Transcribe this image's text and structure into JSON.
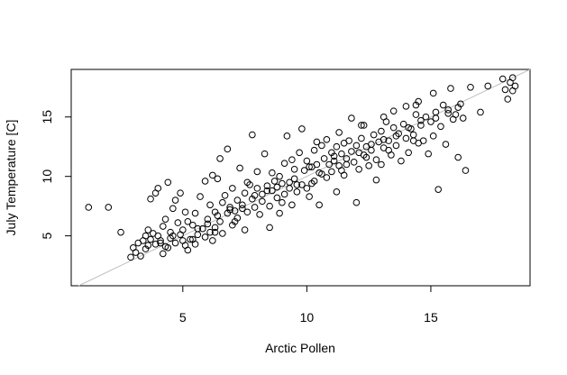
{
  "chart_data": {
    "type": "scatter",
    "title": "",
    "xlabel": "Arctic Pollen",
    "ylabel": "July Temperature [C]",
    "xlim": [
      0.5,
      19.0
    ],
    "ylim": [
      0.8,
      19.0
    ],
    "x_ticks": [
      5,
      10,
      15
    ],
    "y_ticks": [
      5,
      10,
      15
    ],
    "x_tick_labels": [
      "5",
      "10",
      "15"
    ],
    "y_tick_labels": [
      "5",
      "10",
      "15"
    ],
    "grid": false,
    "legend": "none",
    "reference_line": {
      "slope": 1,
      "intercept": 0,
      "color": "#c0c0c0"
    },
    "marker": "open-circle",
    "marker_color": "#000000",
    "series": [
      {
        "points": [
          [
            1.2,
            7.4
          ],
          [
            2.0,
            7.4
          ],
          [
            2.5,
            5.3
          ],
          [
            2.9,
            3.2
          ],
          [
            3.0,
            4.0
          ],
          [
            3.1,
            3.6
          ],
          [
            3.2,
            4.4
          ],
          [
            3.3,
            3.3
          ],
          [
            3.4,
            4.6
          ],
          [
            3.5,
            5.0
          ],
          [
            3.5,
            3.9
          ],
          [
            3.6,
            5.5
          ],
          [
            3.7,
            4.7
          ],
          [
            3.7,
            8.1
          ],
          [
            3.8,
            5.2
          ],
          [
            3.9,
            4.3
          ],
          [
            3.9,
            8.6
          ],
          [
            4.0,
            9.0
          ],
          [
            4.0,
            5.0
          ],
          [
            4.1,
            4.6
          ],
          [
            4.2,
            3.5
          ],
          [
            4.2,
            5.8
          ],
          [
            4.3,
            4.1
          ],
          [
            4.3,
            6.4
          ],
          [
            4.4,
            9.5
          ],
          [
            4.5,
            4.8
          ],
          [
            4.5,
            5.3
          ],
          [
            4.6,
            7.3
          ],
          [
            4.7,
            4.4
          ],
          [
            4.7,
            8.0
          ],
          [
            4.8,
            6.1
          ],
          [
            4.9,
            5.1
          ],
          [
            4.9,
            8.6
          ],
          [
            5.0,
            4.6
          ],
          [
            5.0,
            5.5
          ],
          [
            5.1,
            7.0
          ],
          [
            5.2,
            3.8
          ],
          [
            5.2,
            6.2
          ],
          [
            5.3,
            4.7
          ],
          [
            5.4,
            5.9
          ],
          [
            5.5,
            4.3
          ],
          [
            5.5,
            6.9
          ],
          [
            5.6,
            5.1
          ],
          [
            5.7,
            8.3
          ],
          [
            5.8,
            5.6
          ],
          [
            5.9,
            4.9
          ],
          [
            5.9,
            9.6
          ],
          [
            6.0,
            6.4
          ],
          [
            6.1,
            7.6
          ],
          [
            6.1,
            5.3
          ],
          [
            6.2,
            4.6
          ],
          [
            6.2,
            10.1
          ],
          [
            6.3,
            7.0
          ],
          [
            6.3,
            5.7
          ],
          [
            6.4,
            9.8
          ],
          [
            6.5,
            6.2
          ],
          [
            6.5,
            11.5
          ],
          [
            6.6,
            7.8
          ],
          [
            6.6,
            5.2
          ],
          [
            6.7,
            8.4
          ],
          [
            6.8,
            6.9
          ],
          [
            6.8,
            12.3
          ],
          [
            6.9,
            7.4
          ],
          [
            7.0,
            5.9
          ],
          [
            7.0,
            9.0
          ],
          [
            7.1,
            7.1
          ],
          [
            7.2,
            8.0
          ],
          [
            7.2,
            6.5
          ],
          [
            7.3,
            10.7
          ],
          [
            7.4,
            7.6
          ],
          [
            7.5,
            8.6
          ],
          [
            7.5,
            5.5
          ],
          [
            7.6,
            7.0
          ],
          [
            7.7,
            9.3
          ],
          [
            7.8,
            8.1
          ],
          [
            7.8,
            13.5
          ],
          [
            7.9,
            7.4
          ],
          [
            8.0,
            9.0
          ],
          [
            8.0,
            10.4
          ],
          [
            8.1,
            6.8
          ],
          [
            8.2,
            8.5
          ],
          [
            8.2,
            7.9
          ],
          [
            8.3,
            11.9
          ],
          [
            8.4,
            9.2
          ],
          [
            8.5,
            7.5
          ],
          [
            8.5,
            5.7
          ],
          [
            8.6,
            8.8
          ],
          [
            8.7,
            9.6
          ],
          [
            8.8,
            8.2
          ],
          [
            8.9,
            10.0
          ],
          [
            8.9,
            6.9
          ],
          [
            9.0,
            9.4
          ],
          [
            9.1,
            11.1
          ],
          [
            9.1,
            8.5
          ],
          [
            9.2,
            13.4
          ],
          [
            9.3,
            9.0
          ],
          [
            9.4,
            7.6
          ],
          [
            9.5,
            9.8
          ],
          [
            9.5,
            10.6
          ],
          [
            9.6,
            8.7
          ],
          [
            9.7,
            12.0
          ],
          [
            9.8,
            9.3
          ],
          [
            9.8,
            14.0
          ],
          [
            9.9,
            10.5
          ],
          [
            10.0,
            9.0
          ],
          [
            10.0,
            11.3
          ],
          [
            10.1,
            8.3
          ],
          [
            10.2,
            10.8
          ],
          [
            10.3,
            12.2
          ],
          [
            10.3,
            9.6
          ],
          [
            10.4,
            11.0
          ],
          [
            10.5,
            10.3
          ],
          [
            10.5,
            7.6
          ],
          [
            10.6,
            12.6
          ],
          [
            10.7,
            11.5
          ],
          [
            10.8,
            9.9
          ],
          [
            10.8,
            13.1
          ],
          [
            10.9,
            11.0
          ],
          [
            11.0,
            12.0
          ],
          [
            11.0,
            10.4
          ],
          [
            11.1,
            11.7
          ],
          [
            11.2,
            8.7
          ],
          [
            11.2,
            12.5
          ],
          [
            11.3,
            10.9
          ],
          [
            11.4,
            11.9
          ],
          [
            11.5,
            12.8
          ],
          [
            11.5,
            10.1
          ],
          [
            11.6,
            11.5
          ],
          [
            11.7,
            13.0
          ],
          [
            11.8,
            12.1
          ],
          [
            11.8,
            14.9
          ],
          [
            11.9,
            11.2
          ],
          [
            12.0,
            12.6
          ],
          [
            12.0,
            7.8
          ],
          [
            12.1,
            10.6
          ],
          [
            12.2,
            13.2
          ],
          [
            12.3,
            11.8
          ],
          [
            12.3,
            14.3
          ],
          [
            12.4,
            12.5
          ],
          [
            12.5,
            10.9
          ],
          [
            12.6,
            12.2
          ],
          [
            12.7,
            13.5
          ],
          [
            12.8,
            11.4
          ],
          [
            12.8,
            9.7
          ],
          [
            12.9,
            12.9
          ],
          [
            13.0,
            13.8
          ],
          [
            13.0,
            11.0
          ],
          [
            13.1,
            12.4
          ],
          [
            13.2,
            14.6
          ],
          [
            13.3,
            13.0
          ],
          [
            13.4,
            11.8
          ],
          [
            13.5,
            14.1
          ],
          [
            13.5,
            15.5
          ],
          [
            13.6,
            12.6
          ],
          [
            13.7,
            13.6
          ],
          [
            13.8,
            11.3
          ],
          [
            13.9,
            14.4
          ],
          [
            14.0,
            13.2
          ],
          [
            14.0,
            15.9
          ],
          [
            14.1,
            12.0
          ],
          [
            14.2,
            14.0
          ],
          [
            14.3,
            13.5
          ],
          [
            14.4,
            15.2
          ],
          [
            14.5,
            12.8
          ],
          [
            14.5,
            16.3
          ],
          [
            14.6,
            14.3
          ],
          [
            14.7,
            13.0
          ],
          [
            14.8,
            15.0
          ],
          [
            14.9,
            11.9
          ],
          [
            15.0,
            14.6
          ],
          [
            15.1,
            13.4
          ],
          [
            15.1,
            17.0
          ],
          [
            15.2,
            15.4
          ],
          [
            15.3,
            8.9
          ],
          [
            15.4,
            14.2
          ],
          [
            15.5,
            16.0
          ],
          [
            15.6,
            12.7
          ],
          [
            15.7,
            15.6
          ],
          [
            15.8,
            17.4
          ],
          [
            15.9,
            14.8
          ],
          [
            16.0,
            15.2
          ],
          [
            16.1,
            11.6
          ],
          [
            16.2,
            16.1
          ],
          [
            16.3,
            14.9
          ],
          [
            16.4,
            10.5
          ],
          [
            16.6,
            17.5
          ],
          [
            17.0,
            15.4
          ],
          [
            17.3,
            17.6
          ],
          [
            17.9,
            18.2
          ],
          [
            18.0,
            17.3
          ],
          [
            18.1,
            16.5
          ],
          [
            18.2,
            17.9
          ],
          [
            18.3,
            17.2
          ],
          [
            18.3,
            18.3
          ],
          [
            18.4,
            17.6
          ],
          [
            4.1,
            4.4
          ],
          [
            4.6,
            5.0
          ],
          [
            5.1,
            4.2
          ],
          [
            5.6,
            5.6
          ],
          [
            6.0,
            6.0
          ],
          [
            6.4,
            6.7
          ],
          [
            6.9,
            7.2
          ],
          [
            7.4,
            7.3
          ],
          [
            7.9,
            8.4
          ],
          [
            8.4,
            8.8
          ],
          [
            8.8,
            9.1
          ],
          [
            9.3,
            9.5
          ],
          [
            9.6,
            9.3
          ],
          [
            10.1,
            10.8
          ],
          [
            10.6,
            10.2
          ],
          [
            11.1,
            11.3
          ],
          [
            11.6,
            11.0
          ],
          [
            12.1,
            12.0
          ],
          [
            12.6,
            12.7
          ],
          [
            13.1,
            13.1
          ],
          [
            13.6,
            13.4
          ],
          [
            14.1,
            14.1
          ],
          [
            14.6,
            14.7
          ],
          [
            15.2,
            14.9
          ],
          [
            15.7,
            15.3
          ],
          [
            16.1,
            15.8
          ],
          [
            9.0,
            7.8
          ],
          [
            10.2,
            9.4
          ],
          [
            11.4,
            10.5
          ],
          [
            12.4,
            11.6
          ],
          [
            13.3,
            12.2
          ],
          [
            14.3,
            13.0
          ],
          [
            7.1,
            6.2
          ],
          [
            6.3,
            5.3
          ],
          [
            5.4,
            4.7
          ],
          [
            4.4,
            4.0
          ],
          [
            3.6,
            4.2
          ],
          [
            8.6,
            10.3
          ],
          [
            9.4,
            11.4
          ],
          [
            10.4,
            12.9
          ],
          [
            11.3,
            13.7
          ],
          [
            12.2,
            14.3
          ],
          [
            13.1,
            15.0
          ],
          [
            14.4,
            16.0
          ],
          [
            7.6,
            9.5
          ]
        ]
      }
    ]
  }
}
